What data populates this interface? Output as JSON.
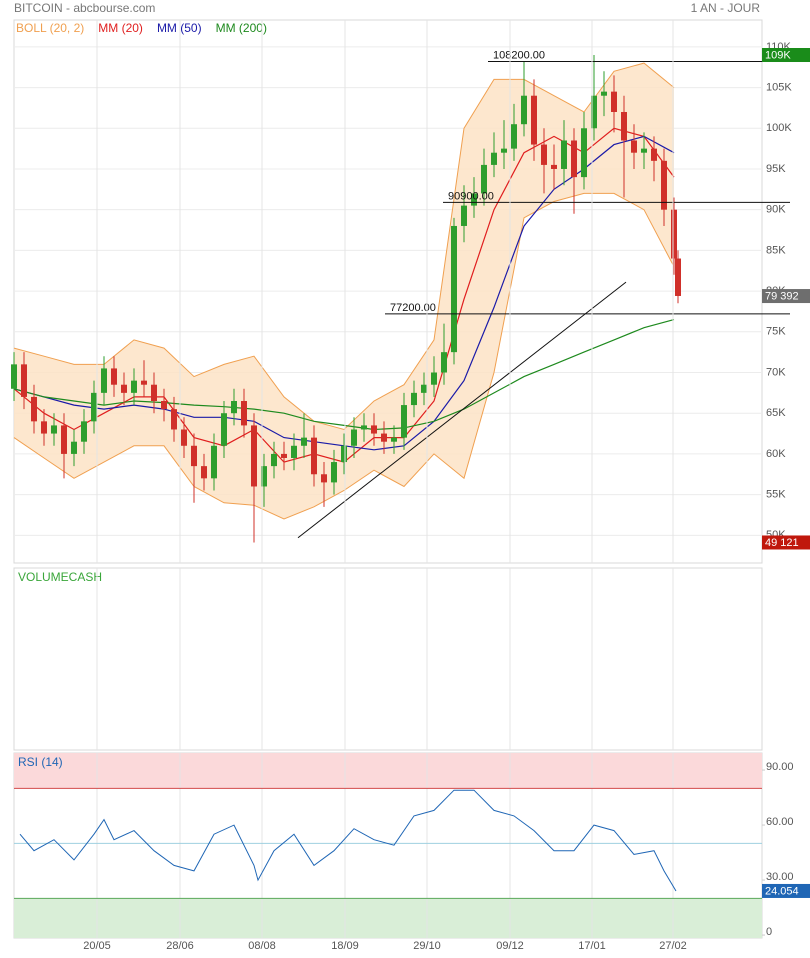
{
  "header": {
    "title": "BITCOIN - abcbourse.com",
    "period": "1 AN - JOUR"
  },
  "chart_data": [
    {
      "type": "candlestick",
      "xlim": [
        0,
        374
      ],
      "ylim": [
        46600,
        113300
      ],
      "yticks": [
        {
          "value": 50000,
          "label": "50K"
        },
        {
          "value": 55000,
          "label": "55K"
        },
        {
          "value": 60000,
          "label": "60K"
        },
        {
          "value": 65000,
          "label": "65K"
        },
        {
          "value": 70000,
          "label": "70K"
        },
        {
          "value": 75000,
          "label": "75K"
        },
        {
          "value": 80000,
          "label": "80K"
        },
        {
          "value": 85000,
          "label": "85K"
        },
        {
          "value": 90000,
          "label": "90K"
        },
        {
          "value": 95000,
          "label": "95K"
        },
        {
          "value": 100000,
          "label": "100K"
        },
        {
          "value": 105000,
          "label": "105K"
        },
        {
          "value": 110000,
          "label": "110K"
        }
      ],
      "color_up": "#2e9e2e",
      "color_down": "#d0302a",
      "x": [
        0,
        5,
        10,
        15,
        20,
        25,
        30,
        35,
        40,
        45,
        50,
        55,
        60,
        65,
        70,
        75,
        80,
        85,
        90,
        95,
        100,
        105,
        110,
        115,
        120,
        125,
        130,
        135,
        140,
        145,
        150,
        155,
        160,
        165,
        170,
        175,
        180,
        185,
        190,
        195,
        200,
        205,
        210,
        215,
        220,
        225,
        230,
        235,
        240,
        245,
        250,
        255,
        260,
        265,
        270,
        275,
        280,
        285,
        290,
        295,
        300,
        305,
        310,
        315,
        320,
        325,
        330,
        332
      ],
      "open": [
        68000,
        71000,
        67000,
        64000,
        62500,
        63500,
        60000,
        61500,
        64000,
        67500,
        70500,
        68500,
        67500,
        69000,
        68500,
        66500,
        65500,
        63000,
        61000,
        58500,
        57000,
        61000,
        65000,
        66500,
        63500,
        56000,
        58500,
        60000,
        59500,
        61000,
        62000,
        57500,
        56500,
        59000,
        61000,
        63000,
        63500,
        62500,
        61500,
        62000,
        66000,
        67500,
        68500,
        70000,
        72500,
        88000,
        90500,
        92000,
        95500,
        97000,
        97500,
        100500,
        104000,
        98000,
        95500,
        95000,
        98500,
        94000,
        100000,
        104000,
        104500,
        102000,
        98500,
        97000,
        97500,
        96000,
        90000,
        84000
      ],
      "high": [
        72500,
        72500,
        68500,
        65500,
        65000,
        65000,
        63000,
        65500,
        69000,
        72000,
        72000,
        70000,
        70500,
        71500,
        70000,
        68000,
        67000,
        64500,
        62500,
        60000,
        62500,
        66500,
        68000,
        68000,
        65000,
        60000,
        61500,
        61500,
        62500,
        65000,
        63500,
        59000,
        60500,
        62500,
        64500,
        65000,
        65000,
        64000,
        63500,
        67500,
        69000,
        70000,
        72000,
        76000,
        89000,
        93000,
        94000,
        97500,
        99500,
        101000,
        103000,
        108200,
        106000,
        100000,
        98000,
        101000,
        100000,
        102000,
        109000,
        107000,
        106500,
        104000,
        100500,
        99500,
        99000,
        97500,
        91500,
        85000
      ],
      "low": [
        66500,
        65500,
        62500,
        61000,
        61000,
        57000,
        58500,
        60000,
        62500,
        66000,
        67000,
        66000,
        66000,
        67000,
        65000,
        64000,
        61500,
        59500,
        54000,
        55500,
        55500,
        59500,
        63500,
        62000,
        49121,
        53500,
        57000,
        58000,
        58000,
        59500,
        56000,
        53500,
        55000,
        57500,
        59500,
        61500,
        61000,
        60000,
        60000,
        60500,
        64500,
        66000,
        67000,
        68500,
        71000,
        86000,
        89000,
        90500,
        94000,
        95000,
        96000,
        99000,
        96000,
        92000,
        92500,
        93000,
        89500,
        92500,
        98500,
        101500,
        99500,
        91500,
        95000,
        95000,
        93500,
        88000,
        82000,
        78500
      ],
      "close": [
        71000,
        67000,
        64000,
        62500,
        63500,
        60000,
        61500,
        64000,
        67500,
        70500,
        68500,
        67500,
        69000,
        68500,
        66500,
        65500,
        63000,
        61000,
        58500,
        57000,
        61000,
        65000,
        66500,
        63500,
        56000,
        58500,
        60000,
        59500,
        61000,
        62000,
        57500,
        56500,
        59000,
        61000,
        63000,
        63500,
        62500,
        61500,
        62000,
        66000,
        67500,
        68500,
        70000,
        72500,
        88000,
        90500,
        92000,
        95500,
        97000,
        97500,
        100500,
        104000,
        98000,
        95500,
        95000,
        98500,
        94000,
        100000,
        104000,
        104500,
        102000,
        98500,
        97000,
        97500,
        96000,
        90000,
        84000,
        79400
      ],
      "overlays": [
        {
          "name": "BOLL (20, 2)",
          "color": "#f0a050",
          "fill": "#fde3c5",
          "x": [
            0,
            15,
            30,
            45,
            60,
            75,
            90,
            105,
            120,
            135,
            150,
            165,
            180,
            195,
            210,
            225,
            240,
            255,
            270,
            285,
            300,
            315,
            330
          ],
          "upper": [
            73000,
            72000,
            71000,
            71000,
            74000,
            73000,
            69500,
            71000,
            72000,
            67000,
            64000,
            63000,
            66500,
            68500,
            74000,
            100000,
            106000,
            106000,
            104000,
            102000,
            107000,
            108000,
            105000
          ],
          "lower": [
            62000,
            59500,
            57000,
            59000,
            61000,
            61000,
            56000,
            54000,
            53700,
            52000,
            53500,
            55500,
            58000,
            56000,
            60000,
            57000,
            70000,
            89000,
            91000,
            92000,
            92000,
            90000,
            83000
          ]
        },
        {
          "name": "MM (20)",
          "color": "#e01e1e",
          "x": [
            0,
            15,
            30,
            45,
            60,
            75,
            90,
            105,
            120,
            135,
            150,
            165,
            180,
            195,
            210,
            225,
            240,
            255,
            270,
            285,
            300,
            315,
            330
          ],
          "values": [
            68000,
            65000,
            63000,
            65000,
            67000,
            67000,
            62000,
            61000,
            63000,
            59000,
            60000,
            59000,
            62000,
            62000,
            66500,
            79000,
            90000,
            97000,
            99000,
            97000,
            100000,
            99000,
            94000
          ]
        },
        {
          "name": "MM (50)",
          "color": "#1a1aa8",
          "x": [
            0,
            15,
            30,
            45,
            60,
            75,
            90,
            105,
            120,
            135,
            150,
            165,
            180,
            195,
            210,
            225,
            240,
            255,
            270,
            285,
            300,
            315,
            330
          ],
          "values": [
            68000,
            67000,
            66000,
            65500,
            66000,
            65500,
            64500,
            64500,
            64000,
            62000,
            61500,
            61000,
            60500,
            61000,
            64000,
            69000,
            78000,
            88000,
            92500,
            95000,
            98000,
            99000,
            97000
          ]
        },
        {
          "name": "MM (200)",
          "color": "#1e8a1e",
          "x": [
            0,
            15,
            30,
            45,
            60,
            75,
            90,
            105,
            120,
            135,
            150,
            165,
            180,
            195,
            210,
            225,
            240,
            255,
            270,
            285,
            300,
            315,
            330
          ],
          "values": [
            68000,
            67000,
            66500,
            66000,
            66500,
            66300,
            66000,
            65800,
            65500,
            65000,
            64000,
            63500,
            63000,
            63200,
            64000,
            65500,
            67500,
            69500,
            71000,
            72500,
            74000,
            75500,
            76500
          ]
        }
      ],
      "levels": [
        {
          "value": 108200,
          "label": "108200.00",
          "from": 237
        },
        {
          "value": 90900,
          "label": "90900.00",
          "from": 214.5
        },
        {
          "value": 77200,
          "label": "77200.00",
          "from": 185.5
        }
      ],
      "trendline": {
        "x": [
          142,
          306
        ],
        "y": [
          49700,
          81100
        ]
      },
      "badges": [
        {
          "value": 109000,
          "label": "109K",
          "color": "#1a8c1a"
        },
        {
          "value": 79392,
          "label": "79 392",
          "color": "#6e6e6e"
        },
        {
          "value": 49121,
          "label": "49 121",
          "color": "#c0180c"
        }
      ]
    },
    {
      "type": "volume",
      "title": "VOLUMECASH",
      "color": "#3aa63a"
    },
    {
      "type": "line",
      "title": "RSI (14)",
      "color": "#1f66b5",
      "xlim": [
        0,
        374
      ],
      "ylim": [
        -1.6,
        99.3
      ],
      "yticks": [
        {
          "value": 0,
          "label": "0"
        },
        {
          "value": 30,
          "label": "30.00"
        },
        {
          "value": 60,
          "label": "60.00"
        },
        {
          "value": 90,
          "label": "90.00"
        }
      ],
      "xticks": [
        {
          "value": 41.5,
          "label": "20/05"
        },
        {
          "value": 83,
          "label": "28/06"
        },
        {
          "value": 124,
          "label": "08/08"
        },
        {
          "value": 165.5,
          "label": "18/09"
        },
        {
          "value": 206.5,
          "label": "29/10"
        },
        {
          "value": 248,
          "label": "09/12"
        },
        {
          "value": 289,
          "label": "17/01"
        },
        {
          "value": 329.5,
          "label": "27/02"
        }
      ],
      "upper_band": 80,
      "midline": 50,
      "lower_band": 20,
      "x": [
        3,
        10,
        20,
        30,
        40,
        45,
        50,
        60,
        70,
        80,
        90,
        100,
        110,
        120,
        122,
        130,
        140,
        150,
        160,
        170,
        180,
        190,
        200,
        210,
        220,
        230,
        240,
        250,
        260,
        270,
        280,
        290,
        300,
        310,
        320,
        325,
        331
      ],
      "values": [
        55,
        46,
        52,
        41,
        55,
        63,
        52,
        57,
        46,
        38,
        35,
        55,
        60,
        38,
        30,
        46,
        55,
        38,
        46,
        58,
        52,
        49,
        65,
        68,
        79,
        79,
        68,
        65,
        57,
        46,
        46,
        60,
        57,
        44,
        46,
        35,
        24.054
      ],
      "badges": [
        {
          "value": 24.054,
          "label": "24.054",
          "color": "#1f66b5"
        }
      ]
    }
  ]
}
